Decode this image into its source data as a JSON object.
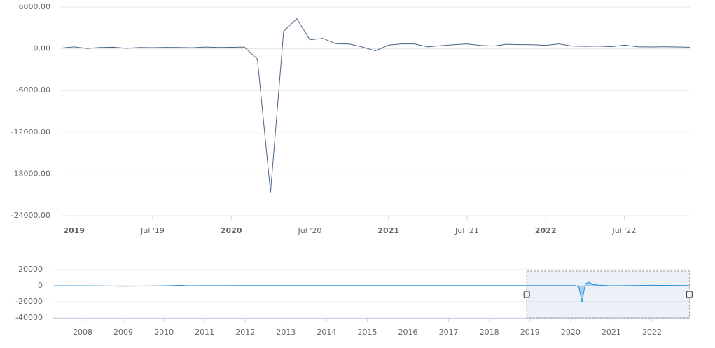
{
  "chart_data": [
    {
      "type": "line",
      "x": [
        "2018-12",
        "2019-01",
        "2019-02",
        "2019-03",
        "2019-04",
        "2019-05",
        "2019-06",
        "2019-07",
        "2019-08",
        "2019-09",
        "2019-10",
        "2019-11",
        "2019-12",
        "2020-01",
        "2020-02",
        "2020-03",
        "2020-04",
        "2020-05",
        "2020-06",
        "2020-07",
        "2020-08",
        "2020-09",
        "2020-10",
        "2020-11",
        "2020-12",
        "2021-01",
        "2021-02",
        "2021-03",
        "2021-04",
        "2021-05",
        "2021-06",
        "2021-07",
        "2021-08",
        "2021-09",
        "2021-10",
        "2021-11",
        "2021-12",
        "2022-01",
        "2022-02",
        "2022-03",
        "2022-04",
        "2022-05",
        "2022-06",
        "2022-07",
        "2022-08",
        "2022-09",
        "2022-10",
        "2022-11",
        "2022-12"
      ],
      "series": [
        {
          "color": "#4a6385",
          "values": [
            100,
            270,
            50,
            190,
            220,
            70,
            180,
            160,
            200,
            180,
            150,
            250,
            180,
            214,
            251,
            -1500,
            -20650,
            2520,
            4330,
            1300,
            1500,
            716,
            680,
            263,
            -300,
            520,
            700,
            700,
            270,
            450,
            580,
            700,
            480,
            380,
            650,
            600,
            580,
            500,
            700,
            400,
            350,
            380,
            300,
            530,
            290,
            260,
            280,
            260,
            220
          ]
        }
      ],
      "ylim": [
        -24000,
        6000
      ],
      "yticks": [
        {
          "value": 6000,
          "label": "6000.00"
        },
        {
          "value": 0,
          "label": "0.00"
        },
        {
          "value": -6000,
          "label": "-6000.00"
        },
        {
          "value": -12000,
          "label": "-12000.00"
        },
        {
          "value": -18000,
          "label": "-18000.00"
        },
        {
          "value": -24000,
          "label": "-24000.00"
        }
      ],
      "xticks": [
        {
          "value": "2019-01",
          "label": "2019"
        },
        {
          "value": "2019-07",
          "label": "Jul '19"
        },
        {
          "value": "2020-01",
          "label": "2020"
        },
        {
          "value": "2020-07",
          "label": "Jul '20"
        },
        {
          "value": "2021-01",
          "label": "2021"
        },
        {
          "value": "2021-07",
          "label": "Jul '21"
        },
        {
          "value": "2022-01",
          "label": "2022"
        },
        {
          "value": "2022-07",
          "label": "Jul '22"
        }
      ],
      "grid": true
    },
    {
      "type": "area",
      "x": [
        2007.3,
        2008,
        2008.5,
        2009,
        2009.5,
        2010,
        2010.4,
        2010.6,
        2011,
        2012,
        2013,
        2014,
        2015,
        2016,
        2017,
        2018,
        2019,
        2020.1,
        2020.2,
        2020.28,
        2020.36,
        2020.45,
        2020.55,
        2020.7,
        2021,
        2022,
        2022.92
      ],
      "series": [
        {
          "color": "#2b8fd9",
          "values": [
            0,
            -50,
            -300,
            -700,
            -400,
            -50,
            400,
            0,
            100,
            150,
            200,
            200,
            200,
            200,
            150,
            200,
            180,
            220,
            -1400,
            -20500,
            2500,
            4400,
            1500,
            700,
            0,
            500,
            250
          ]
        }
      ],
      "ylim": [
        -40000,
        20000
      ],
      "yticks": [
        20000,
        0,
        -20000,
        -40000
      ],
      "xlim": [
        2007.26,
        2022.93
      ],
      "xticks": [
        2008,
        2009,
        2010,
        2011,
        2012,
        2013,
        2014,
        2015,
        2016,
        2017,
        2018,
        2019,
        2020,
        2021,
        2022
      ],
      "selection": [
        2018.92,
        2022.92
      ],
      "grid": true
    }
  ]
}
